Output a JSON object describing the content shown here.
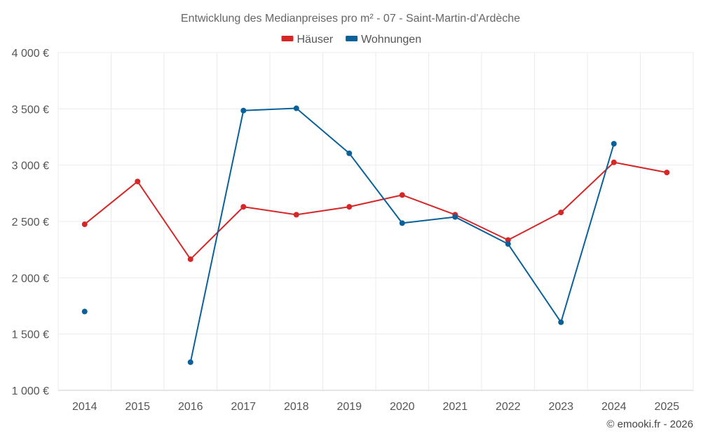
{
  "chart_data": {
    "type": "line",
    "title": "Entwicklung des Medianpreises pro m² - 07 - Saint-Martin-d'Ardèche",
    "xlabel": "",
    "ylabel": "",
    "categories": [
      "2014",
      "2015",
      "2016",
      "2017",
      "2018",
      "2019",
      "2020",
      "2021",
      "2022",
      "2023",
      "2024",
      "2025"
    ],
    "ylim": [
      1000,
      4000
    ],
    "yticks": [
      1000,
      1500,
      2000,
      2500,
      3000,
      3500,
      4000
    ],
    "ytick_labels": [
      "1 000 €",
      "1 500 €",
      "2 000 €",
      "2 500 €",
      "3 000 €",
      "3 500 €",
      "4 000 €"
    ],
    "grid": true,
    "legend_position": "top-center",
    "series": [
      {
        "name": "Häuser",
        "color": "#d62728",
        "values": [
          2475,
          2855,
          2165,
          2630,
          2560,
          2630,
          2735,
          2560,
          2335,
          2580,
          3025,
          2935
        ]
      },
      {
        "name": "Wohnungen",
        "color": "#0a6199",
        "values": [
          1700,
          null,
          1250,
          3485,
          3505,
          3105,
          2485,
          2540,
          2300,
          1605,
          3190,
          null
        ]
      }
    ]
  },
  "credit": "© emooki.fr - 2026"
}
